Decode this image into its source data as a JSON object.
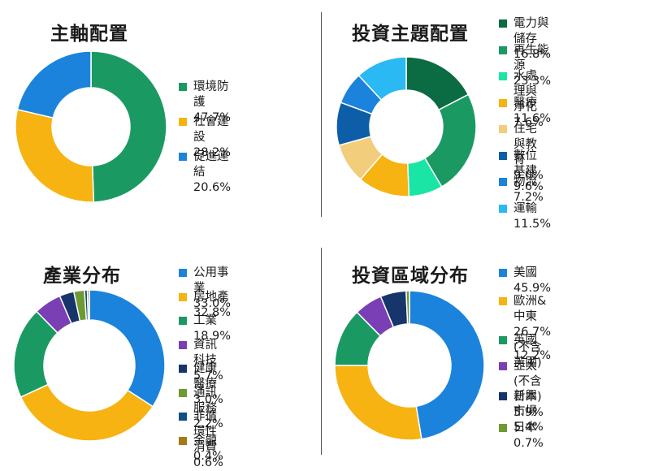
{
  "colors": {
    "green": "#1a9a62",
    "yellow": "#f6b311",
    "blue": "#1b83db",
    "darkgreen": "#0b6b42",
    "teal": "#19e5a5",
    "sand": "#f1cd7c",
    "navy": "#0e5ea7",
    "lightblue": "#2ab9f3",
    "purple": "#7a3fb4",
    "darknavy": "#15356b",
    "olive": "#6f9a31",
    "midnavy": "#0f4f85",
    "brown": "#a87716"
  },
  "chart_data": [
    {
      "type": "pie",
      "title": "主軸配置",
      "slices": [
        {
          "label": "環境防護 47.7%",
          "value": 47.7,
          "color": "#1a9a62"
        },
        {
          "label": "社會建設 28.2%",
          "value": 28.2,
          "color": "#f6b311"
        },
        {
          "label": "促進連結 20.6%",
          "value": 20.6,
          "color": "#1b83db"
        }
      ]
    },
    {
      "type": "pie",
      "title": "投資主題配置",
      "slices": [
        {
          "label": "電力與儲存 16.8%",
          "value": 16.8,
          "color": "#0b6b42"
        },
        {
          "label": "再生能源 23.3%",
          "value": 23.3,
          "color": "#1a9a62"
        },
        {
          "label": "水處理與淨化 7.6%",
          "value": 7.6,
          "color": "#19e5a5"
        },
        {
          "label": "醫療 11.6%",
          "value": 11.6,
          "color": "#f6b311"
        },
        {
          "label": "住宅與教育 9.0%",
          "value": 9.0,
          "color": "#f1cd7c"
        },
        {
          "label": "數位基建 9.6%",
          "value": 9.6,
          "color": "#0e5ea7"
        },
        {
          "label": "物流 7.2%",
          "value": 7.2,
          "color": "#1b83db"
        },
        {
          "label": "運輸 11.5%",
          "value": 11.5,
          "color": "#2ab9f3"
        }
      ]
    },
    {
      "type": "pie",
      "title": "產業分布",
      "slices": [
        {
          "label": "公用事業 33.0%",
          "value": 33.0,
          "color": "#1b83db"
        },
        {
          "label": "房地產 32.8%",
          "value": 32.8,
          "color": "#f6b311"
        },
        {
          "label": "工業 18.9%",
          "value": 18.9,
          "color": "#1a9a62"
        },
        {
          "label": "資訊科技 5.7%",
          "value": 5.7,
          "color": "#7a3fb4"
        },
        {
          "label": "健康醫療 3.0%",
          "value": 3.0,
          "color": "#15356b"
        },
        {
          "label": "通訊服務 2.2%",
          "value": 2.2,
          "color": "#6f9a31"
        },
        {
          "label": "非循環性消費 0.6%",
          "value": 0.6,
          "color": "#0f4f85"
        },
        {
          "label": "金融 0.4%",
          "value": 0.4,
          "color": "#a87716"
        }
      ]
    },
    {
      "type": "pie",
      "title": "投資區域分布",
      "slices": [
        {
          "label": "美國 45.9%",
          "value": 45.9,
          "color": "#1b83db"
        },
        {
          "label": "歐洲&中東 26.7%\n(不含英國)",
          "value": 26.7,
          "color": "#f6b311"
        },
        {
          "label": "英國 12.2%",
          "value": 12.2,
          "color": "#1a9a62"
        },
        {
          "label": "亞太(不含日本) 5.9%",
          "value": 5.9,
          "color": "#7a3fb4"
        },
        {
          "label": "新興市場 5.4%",
          "value": 5.4,
          "color": "#15356b"
        },
        {
          "label": "日本 0.7%",
          "value": 0.7,
          "color": "#6f9a31"
        }
      ]
    }
  ]
}
